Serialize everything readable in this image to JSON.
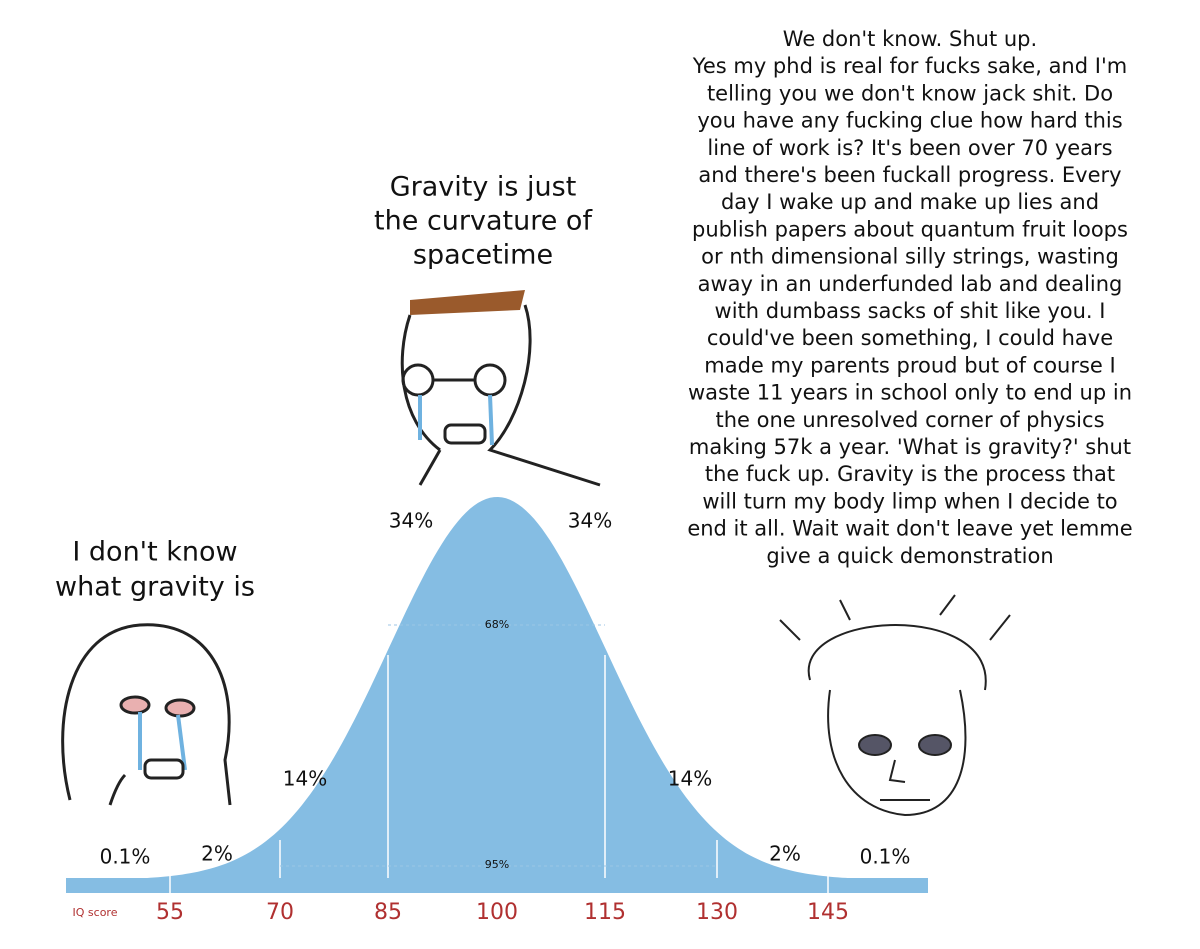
{
  "left_caption": {
    "lines": [
      "I don't know",
      "what gravity is"
    ]
  },
  "middle_caption": {
    "lines": [
      "Gravity is just",
      "the curvature of",
      "spacetime"
    ]
  },
  "right_caption": {
    "lines": [
      "We don't know. Shut up.",
      "Yes my phd is real for fucks sake, and I'm",
      "telling you we don't know jack shit. Do",
      "you have any fucking clue how hard this",
      "line of work is? It's been over 70 years",
      "and there's been fuckall progress. Every",
      "day I wake up and make up lies and",
      "publish papers about quantum fruit loops",
      "or nth dimensional silly strings, wasting",
      "away in an underfunded lab and dealing",
      "with dumbass sacks of shit like you. I",
      "could've been something, I could have",
      "made my parents proud but of course I",
      "waste 11 years in school only to end up in",
      "the one unresolved corner of physics",
      "making 57k a year. 'What is gravity?' shut",
      "the fuck up. Gravity is the process that",
      "will turn my body limp when I decide to",
      "end it all. Wait wait don't leave yet lemme",
      "give a quick demonstration"
    ]
  },
  "curve": {
    "percent_labels": [
      "0.1%",
      "2%",
      "14%",
      "34%",
      "34%",
      "14%",
      "2%",
      "0.1%"
    ],
    "band_labels": [
      "68%",
      "95%"
    ]
  },
  "axis": {
    "title": "IQ score",
    "labels": [
      "55",
      "70",
      "85",
      "100",
      "115",
      "130",
      "145"
    ]
  }
}
